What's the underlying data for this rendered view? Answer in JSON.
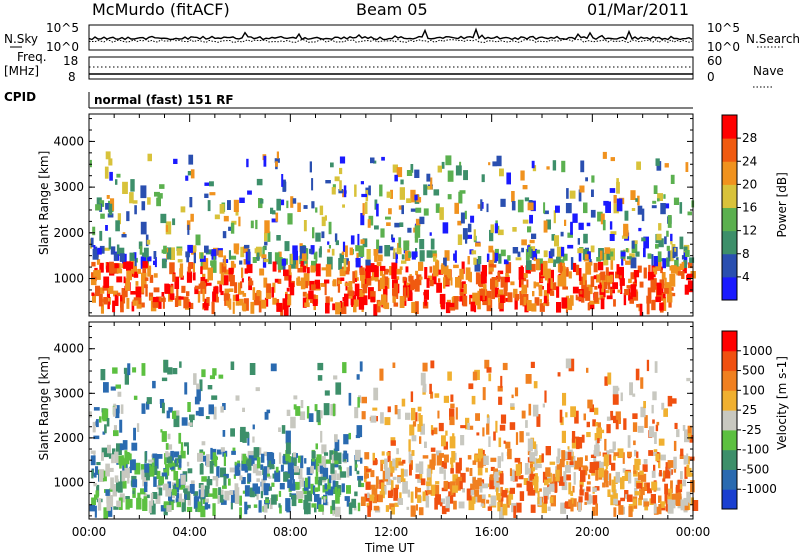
{
  "header": {
    "station": "McMurdo (fitACF)",
    "beam": "Beam 05",
    "date": "01/Mar/2011"
  },
  "strips": {
    "nsky_label": "N.Sky",
    "nsky_ticks": [
      "10^5",
      "10^0"
    ],
    "nsearch_label": "N.Search",
    "nsearch_ticks": [
      "10^5",
      "10^0"
    ],
    "freq_label_1": "Freq.",
    "freq_label_2": "[MHz]",
    "freq_ticks": [
      "18",
      "8"
    ],
    "nave_label": "Nave",
    "nave_ticks": [
      "60",
      "0"
    ],
    "cpid_label": "CPID",
    "cpid_text": "normal (fast) 151 RF"
  },
  "chart_data": [
    {
      "type": "heatmap",
      "panel": "power",
      "ylabel": "Slant Range [km]",
      "yticks": [
        "1000",
        "2000",
        "3000",
        "4000"
      ],
      "ylim": [
        180,
        4600
      ],
      "xlabel": "",
      "xticks": [
        "00:00",
        "04:00",
        "08:00",
        "12:00",
        "16:00",
        "20:00",
        "00:00"
      ],
      "xlim": [
        0,
        24
      ],
      "colorbar": {
        "label": "Power [dB]",
        "ticks": [
          "4",
          "8",
          "12",
          "16",
          "20",
          "24",
          "28"
        ],
        "colors": [
          "#1a1aff",
          "#2a4fb0",
          "#3d8f6a",
          "#5bb04f",
          "#d8c23a",
          "#f0921e",
          "#f05a10",
          "#ff0000"
        ]
      }
    },
    {
      "type": "heatmap",
      "panel": "velocity",
      "ylabel": "Slant Range [km]",
      "yticks": [
        "1000",
        "2000",
        "3000",
        "4000"
      ],
      "ylim": [
        180,
        4600
      ],
      "xlabel": "Time UT",
      "xticks": [
        "00:00",
        "04:00",
        "08:00",
        "12:00",
        "16:00",
        "20:00",
        "00:00"
      ],
      "xlim": [
        0,
        24
      ],
      "colorbar": {
        "label": "Velocity [m s-1]",
        "ticks": [
          "1000",
          "500",
          "100",
          "25",
          "-25",
          "-100",
          "-500",
          "-1000"
        ],
        "colors": [
          "#1a3fd0",
          "#2a6ab0",
          "#3d8f6a",
          "#5cc040",
          "#c8c8c0",
          "#f0b030",
          "#f08020",
          "#f05010",
          "#ff0000"
        ]
      }
    }
  ]
}
